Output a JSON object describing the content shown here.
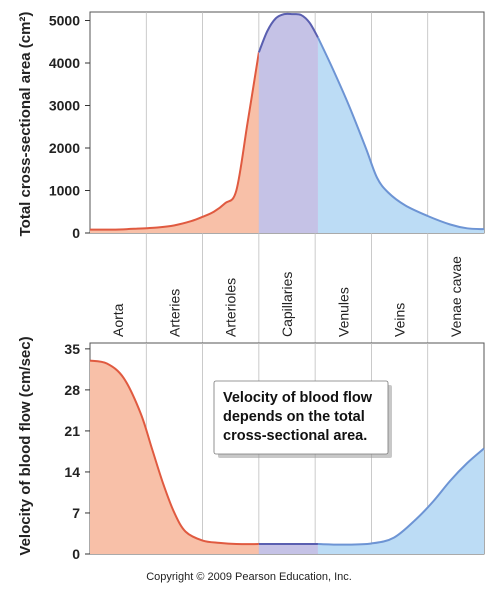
{
  "colors": {
    "pink_fill": "#f8c0a8",
    "pink_line": "#e05a40",
    "purple_fill": "#c5c2e6",
    "purple_line": "#5a5fb0",
    "blue_fill": "#bcdcf5",
    "blue_line": "#6d94d4",
    "grid": "#bdbdbd",
    "panel_border": "#555555"
  },
  "categories": [
    "Aorta",
    "Arteries",
    "Arterioles",
    "Capillaries",
    "Venules",
    "Veins",
    "Venae cavae"
  ],
  "callout": {
    "lines": [
      "Velocity of blood flow",
      "depends on the total",
      "cross-sectional area."
    ]
  },
  "copyright": "Copyright © 2009 Pearson Education, Inc.",
  "chart_data": [
    {
      "type": "area",
      "ylabel": "Total cross-sectional area (cm²)",
      "xlabel": "",
      "ylim": [
        0,
        5200
      ],
      "yticks": [
        0,
        1000,
        2000,
        3000,
        4000,
        5000
      ],
      "grid": "vertical category dividers",
      "x_domain": [
        0,
        7
      ],
      "segments": [
        {
          "region": "arterial",
          "color_fill": "#f8c0a8",
          "color_line": "#e05a40",
          "x": [
            0,
            0.4,
            0.8,
            1.2,
            1.5,
            1.8,
            2.0,
            2.2,
            2.4,
            2.6,
            2.8,
            3.0
          ],
          "y": [
            80,
            80,
            100,
            130,
            180,
            280,
            380,
            500,
            700,
            1000,
            2600,
            4250
          ]
        },
        {
          "region": "capillary",
          "color_fill": "#c5c2e6",
          "color_line": "#5a5fb0",
          "x": [
            3.0,
            3.15,
            3.3,
            3.45,
            3.6,
            3.75,
            3.9,
            4.05
          ],
          "y": [
            4250,
            4750,
            5050,
            5150,
            5150,
            5130,
            4950,
            4600
          ]
        },
        {
          "region": "venous",
          "color_fill": "#bcdcf5",
          "color_line": "#6d94d4",
          "x": [
            4.05,
            4.3,
            4.6,
            4.9,
            5.1,
            5.3,
            5.6,
            6.0,
            6.4,
            6.7,
            7.0
          ],
          "y": [
            4600,
            3900,
            3000,
            2000,
            1300,
            950,
            650,
            400,
            200,
            110,
            90
          ]
        }
      ]
    },
    {
      "type": "area",
      "ylabel": "Velocity of blood flow (cm/sec)",
      "xlabel": "",
      "ylim": [
        0,
        36
      ],
      "yticks": [
        0,
        7,
        14,
        21,
        28,
        35
      ],
      "x_domain": [
        0,
        7
      ],
      "segments": [
        {
          "region": "arterial",
          "color_fill": "#f8c0a8",
          "color_line": "#e05a40",
          "x": [
            0,
            0.3,
            0.6,
            0.9,
            1.1,
            1.3,
            1.5,
            1.7,
            2.0,
            2.3,
            2.6,
            3.0
          ],
          "y": [
            33,
            32.5,
            30,
            24,
            18,
            12,
            7,
            3.8,
            2.3,
            1.9,
            1.7,
            1.7
          ]
        },
        {
          "region": "capillary",
          "color_fill": "#c5c2e6",
          "color_line": "#5a5fb0",
          "x": [
            3.0,
            3.5,
            4.05
          ],
          "y": [
            1.7,
            1.7,
            1.7
          ]
        },
        {
          "region": "venous",
          "color_fill": "#bcdcf5",
          "color_line": "#6d94d4",
          "x": [
            4.05,
            4.5,
            5.0,
            5.4,
            5.8,
            6.1,
            6.4,
            6.7,
            7.0
          ],
          "y": [
            1.7,
            1.6,
            1.8,
            2.8,
            6,
            9,
            12.5,
            15.5,
            18
          ]
        }
      ]
    }
  ]
}
